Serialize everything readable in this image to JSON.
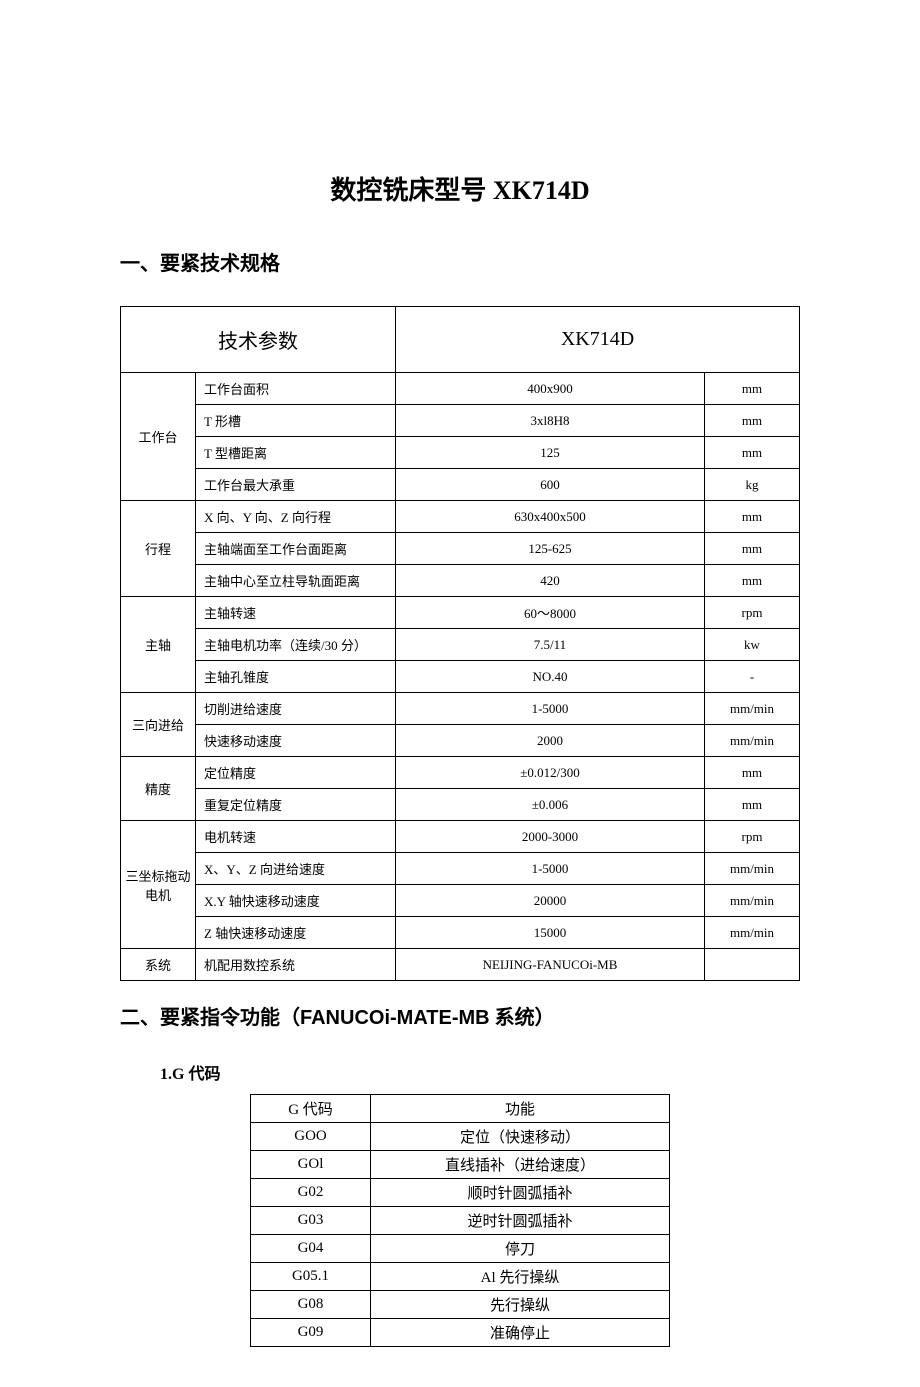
{
  "title_prefix": "数控铣床型号 ",
  "title_model": "XK714D",
  "section1_heading": "一、要紧技术规格",
  "section2_heading_prefix": "二、要紧指令功能（",
  "section2_heading_system": "FANUCOi-MATE-MB",
  "section2_heading_suffix": " 系统）",
  "sub1_prefix": "1.G",
  "sub1_suffix": " 代码",
  "spec_header": {
    "col1": "技术参数",
    "col2": "XK714D"
  },
  "spec_groups": [
    {
      "category": "工作台",
      "rows": [
        {
          "param": "工作台面积",
          "value": "400x900",
          "unit": "mm"
        },
        {
          "param": "T 形槽",
          "value": "3xl8H8",
          "unit": "mm"
        },
        {
          "param": "T 型槽距离",
          "value": "125",
          "unit": "mm"
        },
        {
          "param": "工作台最大承重",
          "value": "600",
          "unit": "kg"
        }
      ]
    },
    {
      "category": "行程",
      "rows": [
        {
          "param": "X 向、Y 向、Z 向行程",
          "value": "630x400x500",
          "unit": "mm"
        },
        {
          "param": "主轴端面至工作台面距离",
          "value": "125-625",
          "unit": "mm"
        },
        {
          "param": "主轴中心至立柱导轨面距离",
          "value": "420",
          "unit": "mm"
        }
      ]
    },
    {
      "category": "主轴",
      "rows": [
        {
          "param": "主轴转速",
          "value": "60～8000",
          "unit": "rpm"
        },
        {
          "param": "主轴电机功率（连续/30 分）",
          "value": "7.5/11",
          "unit": "kw"
        },
        {
          "param": "主轴孔锥度",
          "value": "NO.40",
          "unit": "-"
        }
      ]
    },
    {
      "category": "三向进给",
      "rows": [
        {
          "param": "切削进给速度",
          "value": "1-5000",
          "unit": "mm/min"
        },
        {
          "param": "快速移动速度",
          "value": "2000",
          "unit": "mm/min"
        }
      ]
    },
    {
      "category": "精度",
      "rows": [
        {
          "param": "定位精度",
          "value": "±0.012/300",
          "unit": "mm"
        },
        {
          "param": "重复定位精度",
          "value": "±0.006",
          "unit": "mm"
        }
      ]
    },
    {
      "category": "三坐标拖动电机",
      "rows": [
        {
          "param": "电机转速",
          "value": "2000-3000",
          "unit": "rpm"
        },
        {
          "param": "X、Y、Z 向进给速度",
          "value": "1-5000",
          "unit": "mm/min"
        },
        {
          "param": "X.Y 轴快速移动速度",
          "value": "20000",
          "unit": "mm/min"
        },
        {
          "param": "Z 轴快速移动速度",
          "value": "15000",
          "unit": "mm/min"
        }
      ]
    },
    {
      "category": "系统",
      "rows": [
        {
          "param": "机配用数控系统",
          "value": "NEIJING-FANUCOi-MB",
          "unit": ""
        }
      ]
    }
  ],
  "gcode_header": {
    "col1": "G 代码",
    "col2": "功能"
  },
  "gcodes": [
    {
      "code": "GOO",
      "func": "定位（快速移动）"
    },
    {
      "code": "GOl",
      "func": "直线插补（进给速度）"
    },
    {
      "code": "G02",
      "func": "顺时针圆弧插补"
    },
    {
      "code": "G03",
      "func": "逆时针圆弧插补"
    },
    {
      "code": "G04",
      "func": "停刀"
    },
    {
      "code": "G05.1",
      "func": "Al 先行操纵"
    },
    {
      "code": "G08",
      "func": "先行操纵"
    },
    {
      "code": "G09",
      "func": "准确停止"
    }
  ]
}
